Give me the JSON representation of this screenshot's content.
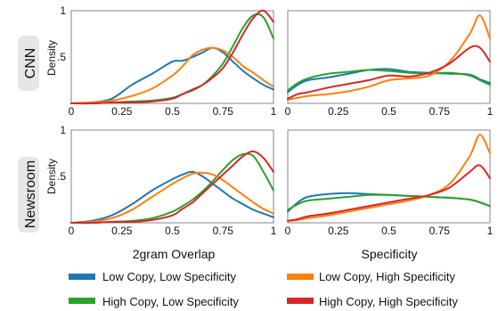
{
  "chart_data": [
    {
      "type": "line",
      "row_label": "CNN",
      "ylabel": "Density",
      "xlabel": "",
      "xlim": [
        0,
        1
      ],
      "ylim": [
        0,
        1
      ],
      "xticks": [
        "0",
        "0.25",
        "0.5",
        "0.75",
        "1"
      ],
      "yticks": [
        ".5",
        "1"
      ],
      "series": [
        {
          "x": [
            0,
            0.1,
            0.2,
            0.3,
            0.4,
            0.5,
            0.55,
            0.6,
            0.65,
            0.7,
            0.75,
            0.8,
            0.85,
            0.9,
            0.95,
            1.0
          ],
          "y": [
            0,
            0.01,
            0.05,
            0.2,
            0.32,
            0.45,
            0.46,
            0.5,
            0.55,
            0.6,
            0.55,
            0.45,
            0.35,
            0.27,
            0.2,
            0.15
          ]
        },
        {
          "x": [
            0,
            0.1,
            0.2,
            0.3,
            0.4,
            0.5,
            0.55,
            0.6,
            0.65,
            0.7,
            0.75,
            0.8,
            0.85,
            0.9,
            0.95,
            1.0
          ],
          "y": [
            0,
            0,
            0.01,
            0.02,
            0.03,
            0.06,
            0.1,
            0.14,
            0.2,
            0.3,
            0.43,
            0.62,
            0.82,
            0.95,
            0.93,
            0.7
          ]
        },
        {
          "x": [
            0,
            0.1,
            0.2,
            0.3,
            0.4,
            0.5,
            0.55,
            0.6,
            0.65,
            0.7,
            0.75,
            0.8,
            0.85,
            0.9,
            0.95,
            1.0
          ],
          "y": [
            0,
            0.01,
            0.03,
            0.08,
            0.16,
            0.3,
            0.4,
            0.52,
            0.58,
            0.6,
            0.57,
            0.5,
            0.4,
            0.33,
            0.25,
            0.18
          ]
        },
        {
          "x": [
            0,
            0.1,
            0.2,
            0.3,
            0.4,
            0.5,
            0.55,
            0.6,
            0.65,
            0.7,
            0.75,
            0.8,
            0.85,
            0.9,
            0.95,
            1.0
          ],
          "y": [
            0,
            0,
            0.01,
            0.01,
            0.02,
            0.05,
            0.1,
            0.15,
            0.2,
            0.28,
            0.38,
            0.55,
            0.75,
            0.92,
            1.0,
            0.88
          ]
        }
      ]
    },
    {
      "type": "line",
      "row_label": "",
      "ylabel": "",
      "xlabel": "",
      "xlim": [
        0,
        1
      ],
      "ylim": [
        0,
        1
      ],
      "xticks": [
        "0",
        "0.25",
        "0.5",
        "0.75",
        "1"
      ],
      "yticks": [],
      "series": [
        {
          "x": [
            0,
            0.05,
            0.1,
            0.2,
            0.3,
            0.4,
            0.5,
            0.6,
            0.7,
            0.8,
            0.9,
            0.95,
            1.0
          ],
          "y": [
            0.12,
            0.2,
            0.25,
            0.28,
            0.32,
            0.36,
            0.37,
            0.34,
            0.33,
            0.32,
            0.31,
            0.26,
            0.22
          ]
        },
        {
          "x": [
            0,
            0.05,
            0.1,
            0.2,
            0.3,
            0.4,
            0.5,
            0.6,
            0.7,
            0.8,
            0.9,
            0.95,
            1.0
          ],
          "y": [
            0.14,
            0.22,
            0.27,
            0.32,
            0.34,
            0.36,
            0.35,
            0.33,
            0.32,
            0.33,
            0.3,
            0.25,
            0.2
          ]
        },
        {
          "x": [
            0,
            0.05,
            0.1,
            0.2,
            0.3,
            0.4,
            0.5,
            0.6,
            0.7,
            0.8,
            0.9,
            0.95,
            1.0
          ],
          "y": [
            0.04,
            0.06,
            0.08,
            0.1,
            0.13,
            0.18,
            0.25,
            0.27,
            0.3,
            0.45,
            0.75,
            0.95,
            0.7
          ]
        },
        {
          "x": [
            0,
            0.05,
            0.1,
            0.2,
            0.3,
            0.4,
            0.5,
            0.6,
            0.7,
            0.8,
            0.9,
            0.95,
            1.0
          ],
          "y": [
            0.05,
            0.1,
            0.12,
            0.17,
            0.21,
            0.25,
            0.3,
            0.29,
            0.33,
            0.43,
            0.6,
            0.6,
            0.45
          ]
        }
      ]
    },
    {
      "type": "line",
      "row_label": "Newsroom",
      "ylabel": "Density",
      "xlabel": "2gram Overlap",
      "xlim": [
        0,
        1
      ],
      "ylim": [
        0,
        1
      ],
      "xticks": [
        "0",
        "0.25",
        "0.5",
        "0.75",
        "1"
      ],
      "yticks": [
        ".5",
        "1"
      ],
      "series": [
        {
          "x": [
            0,
            0.1,
            0.2,
            0.3,
            0.4,
            0.5,
            0.55,
            0.6,
            0.65,
            0.7,
            0.75,
            0.8,
            0.85,
            0.9,
            0.95,
            1.0
          ],
          "y": [
            0,
            0.02,
            0.08,
            0.2,
            0.35,
            0.47,
            0.52,
            0.55,
            0.5,
            0.42,
            0.34,
            0.26,
            0.2,
            0.14,
            0.1,
            0.06
          ]
        },
        {
          "x": [
            0,
            0.1,
            0.2,
            0.3,
            0.4,
            0.5,
            0.55,
            0.6,
            0.65,
            0.7,
            0.75,
            0.8,
            0.85,
            0.9,
            0.95,
            1.0
          ],
          "y": [
            0,
            0,
            0.01,
            0.02,
            0.05,
            0.12,
            0.18,
            0.25,
            0.34,
            0.45,
            0.57,
            0.68,
            0.74,
            0.72,
            0.55,
            0.35
          ]
        },
        {
          "x": [
            0,
            0.1,
            0.2,
            0.3,
            0.4,
            0.5,
            0.55,
            0.6,
            0.65,
            0.7,
            0.75,
            0.8,
            0.85,
            0.9,
            0.95,
            1.0
          ],
          "y": [
            0,
            0.01,
            0.05,
            0.14,
            0.28,
            0.42,
            0.48,
            0.53,
            0.54,
            0.52,
            0.46,
            0.38,
            0.3,
            0.22,
            0.15,
            0.1
          ]
        },
        {
          "x": [
            0,
            0.1,
            0.2,
            0.3,
            0.4,
            0.5,
            0.55,
            0.6,
            0.65,
            0.7,
            0.75,
            0.8,
            0.85,
            0.9,
            0.95,
            1.0
          ],
          "y": [
            0,
            0,
            0.01,
            0.01,
            0.03,
            0.08,
            0.15,
            0.22,
            0.32,
            0.42,
            0.52,
            0.62,
            0.72,
            0.77,
            0.7,
            0.55
          ]
        }
      ]
    },
    {
      "type": "line",
      "row_label": "",
      "ylabel": "",
      "xlabel": "Specificity",
      "xlim": [
        0,
        1
      ],
      "ylim": [
        0,
        1
      ],
      "xticks": [
        "0",
        "0.25",
        "0.5",
        "0.75",
        "1"
      ],
      "yticks": [],
      "series": [
        {
          "x": [
            0,
            0.05,
            0.1,
            0.2,
            0.3,
            0.4,
            0.5,
            0.6,
            0.7,
            0.8,
            0.9,
            0.95,
            1.0
          ],
          "y": [
            0.12,
            0.22,
            0.28,
            0.31,
            0.32,
            0.31,
            0.3,
            0.29,
            0.28,
            0.27,
            0.25,
            0.22,
            0.18
          ]
        },
        {
          "x": [
            0,
            0.05,
            0.1,
            0.2,
            0.3,
            0.4,
            0.5,
            0.6,
            0.7,
            0.8,
            0.9,
            0.95,
            1.0
          ],
          "y": [
            0.14,
            0.2,
            0.24,
            0.26,
            0.28,
            0.3,
            0.3,
            0.29,
            0.28,
            0.27,
            0.25,
            0.22,
            0.18
          ]
        },
        {
          "x": [
            0,
            0.05,
            0.1,
            0.2,
            0.3,
            0.4,
            0.5,
            0.6,
            0.7,
            0.8,
            0.9,
            0.95,
            1.0
          ],
          "y": [
            0.02,
            0.03,
            0.05,
            0.08,
            0.12,
            0.16,
            0.2,
            0.24,
            0.3,
            0.42,
            0.72,
            0.95,
            0.75
          ]
        },
        {
          "x": [
            0,
            0.05,
            0.1,
            0.2,
            0.3,
            0.4,
            0.5,
            0.6,
            0.7,
            0.8,
            0.9,
            0.95,
            1.0
          ],
          "y": [
            0.02,
            0.04,
            0.07,
            0.1,
            0.14,
            0.18,
            0.22,
            0.26,
            0.3,
            0.38,
            0.55,
            0.62,
            0.48
          ]
        }
      ]
    }
  ],
  "colors": [
    "#1f77b4",
    "#2ca02c",
    "#ff7f0e",
    "#d62728"
  ],
  "legend": {
    "placement": "bottom",
    "entries": [
      "Low Copy, Low Specificity",
      "Low Copy, High Specificity",
      "High Copy, Low Specificity",
      "High Copy, High Specificity"
    ]
  }
}
